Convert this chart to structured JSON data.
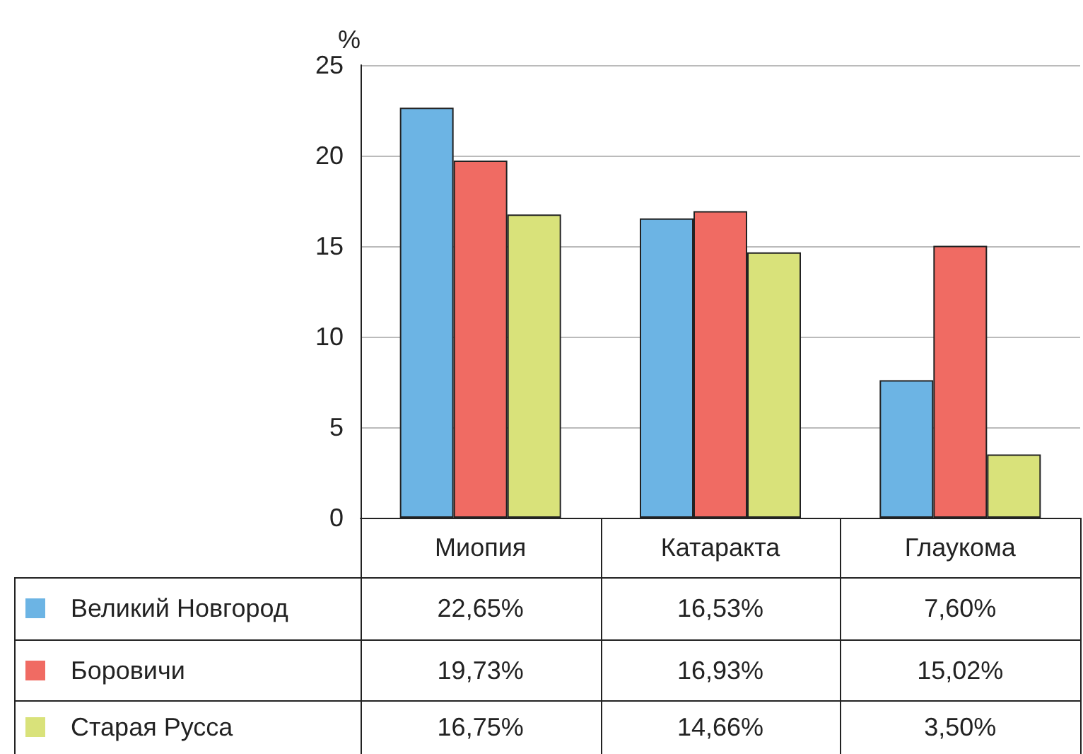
{
  "chart_data": {
    "type": "bar",
    "ylabel": "%",
    "categories": [
      "Миопия",
      "Катаракта",
      "Глаукома"
    ],
    "series": [
      {
        "name": "Великий Новгород",
        "color": "#6cb4e4",
        "values": [
          22.65,
          16.53,
          7.6
        ],
        "value_labels": [
          "22,65%",
          "16,53%",
          "7,60%"
        ]
      },
      {
        "name": "Боровичи",
        "color": "#f06b63",
        "values": [
          19.73,
          16.93,
          15.02
        ],
        "value_labels": [
          "19,73%",
          "16,93%",
          "15,02%"
        ]
      },
      {
        "name": "Старая Русса",
        "color": "#d9e27a",
        "values": [
          16.75,
          14.66,
          3.5
        ],
        "value_labels": [
          "16,75%",
          "14,66%",
          "3,50%"
        ]
      }
    ],
    "ylim": [
      0,
      25
    ],
    "yticks": [
      0,
      5,
      10,
      15,
      20,
      25
    ],
    "grid": "y",
    "legend": "bottom left"
  }
}
